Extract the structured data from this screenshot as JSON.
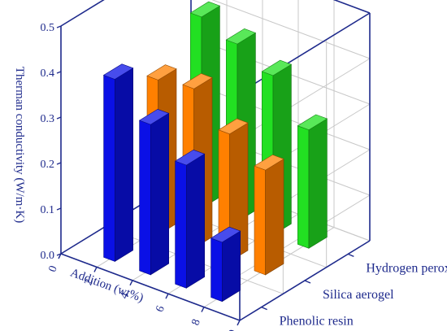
{
  "chart_data": {
    "type": "bar",
    "style": "3d-grouped",
    "ylabel": "Therman conductivity (W/m·K)",
    "xlabel": "Addition (wt%)",
    "ylim": [
      0.0,
      0.5
    ],
    "yticks": [
      "0.0",
      "0.1",
      "0.2",
      "0.3",
      "0.4",
      "0.5"
    ],
    "x_ticks": [
      "0",
      "2",
      "4",
      "6",
      "8",
      "10"
    ],
    "categories": [
      "2",
      "4",
      "6",
      "8"
    ],
    "grid": true,
    "series": [
      {
        "name": "Phenolic resin",
        "color": "#0a10e6",
        "values": [
          0.4,
          0.33,
          0.27,
          0.13
        ]
      },
      {
        "name": "Silica aerogel",
        "color": "#ff8000",
        "values": [
          0.34,
          0.35,
          0.28,
          0.23
        ]
      },
      {
        "name": "Hydrogen peroxide",
        "color": "#22e022",
        "values": [
          0.42,
          0.39,
          0.35,
          0.26
        ]
      }
    ]
  }
}
